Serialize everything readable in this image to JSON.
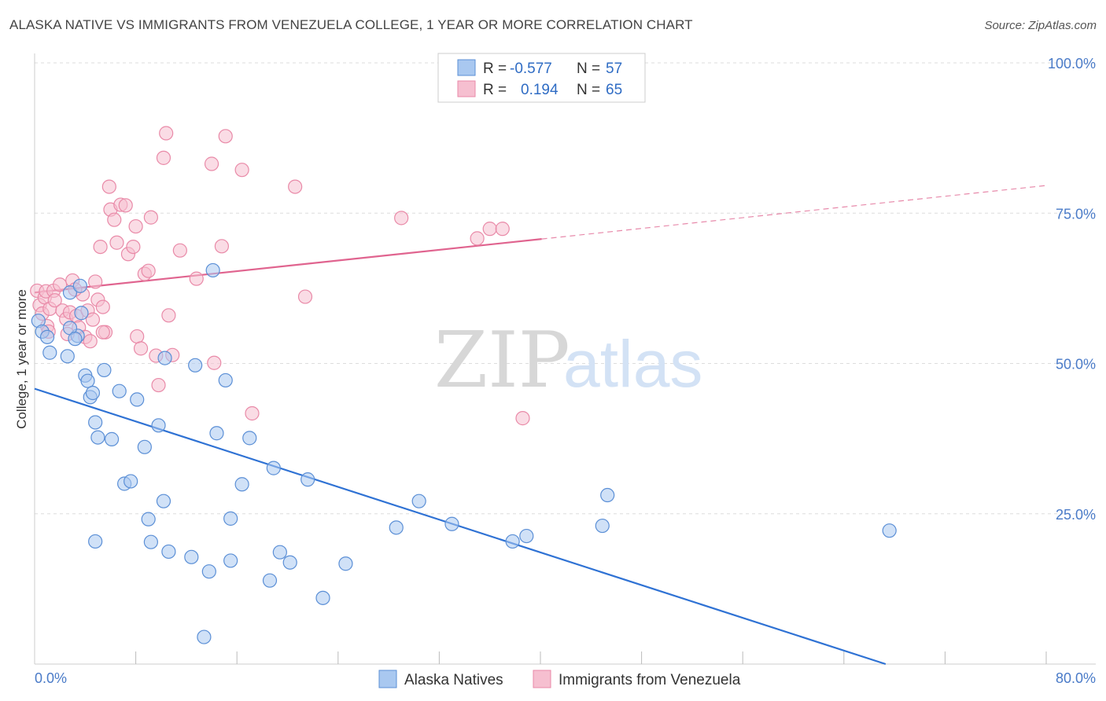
{
  "header": {
    "title": "ALASKA NATIVE VS IMMIGRANTS FROM VENEZUELA COLLEGE, 1 YEAR OR MORE CORRELATION CHART",
    "source": "Source: ZipAtlas.com"
  },
  "watermark": {
    "zip": "ZIP",
    "atlas": "atlas"
  },
  "legend": {
    "rows": [
      {
        "r_label": "R =",
        "r_value": "-0.577",
        "n_label": "N =",
        "n_value": "57"
      },
      {
        "r_label": "R =",
        "r_value": "0.194",
        "n_label": "N =",
        "n_value": "65"
      }
    ]
  },
  "bottom_legend": {
    "blue": "Alaska Natives",
    "pink": "Immigrants from Venezuela"
  },
  "colors": {
    "blue_fill": "#a9c8f0",
    "blue_stroke": "#5b8fd6",
    "blue_line": "#2f72d4",
    "pink_fill": "#f6bfd0",
    "pink_stroke": "#e98aa8",
    "pink_line": "#e0648f",
    "grid": "#dddddd"
  },
  "chart_data": {
    "type": "scatter",
    "title": "ALASKA NATIVE VS IMMIGRANTS FROM VENEZUELA COLLEGE, 1 YEAR OR MORE CORRELATION CHART",
    "xlabel": "",
    "ylabel": "College, 1 year or more",
    "xlim": [
      0,
      80
    ],
    "ylim": [
      0,
      100
    ],
    "x_tick_labels": [
      "0.0%",
      "80.0%"
    ],
    "y_tick_labels": [
      "25.0%",
      "50.0%",
      "75.0%",
      "100.0%"
    ],
    "y_ticks": [
      25,
      50,
      75,
      100
    ],
    "grid": true,
    "legend_position": "top-center",
    "series": [
      {
        "name": "Alaska Natives",
        "color": "#a9c8f0",
        "trend": {
          "x": [
            0,
            67.3
          ],
          "y": [
            45.8,
            0
          ],
          "style": "solid"
        },
        "points": [
          [
            0.3,
            57.1
          ],
          [
            0.6,
            55.3
          ],
          [
            1.0,
            54.4
          ],
          [
            1.2,
            51.8
          ],
          [
            2.8,
            61.8
          ],
          [
            3.4,
            54.6
          ],
          [
            2.8,
            55.9
          ],
          [
            3.2,
            54.1
          ],
          [
            2.6,
            51.2
          ],
          [
            3.6,
            62.9
          ],
          [
            3.7,
            58.4
          ],
          [
            4.0,
            48.0
          ],
          [
            4.2,
            47.1
          ],
          [
            4.4,
            44.4
          ],
          [
            4.6,
            45.1
          ],
          [
            4.8,
            40.2
          ],
          [
            5.0,
            37.7
          ],
          [
            5.5,
            48.9
          ],
          [
            6.1,
            37.4
          ],
          [
            6.7,
            45.4
          ],
          [
            7.1,
            30.0
          ],
          [
            7.6,
            30.4
          ],
          [
            8.1,
            44.0
          ],
          [
            8.7,
            36.1
          ],
          [
            9.0,
            24.1
          ],
          [
            9.2,
            20.3
          ],
          [
            9.8,
            39.7
          ],
          [
            10.2,
            27.1
          ],
          [
            10.6,
            18.7
          ],
          [
            12.4,
            17.8
          ],
          [
            12.7,
            49.7
          ],
          [
            13.8,
            15.4
          ],
          [
            14.4,
            38.4
          ],
          [
            14.1,
            65.5
          ],
          [
            15.1,
            47.2
          ],
          [
            15.5,
            24.2
          ],
          [
            15.5,
            17.2
          ],
          [
            16.4,
            29.9
          ],
          [
            17.0,
            37.6
          ],
          [
            18.6,
            13.9
          ],
          [
            18.9,
            32.6
          ],
          [
            19.4,
            18.6
          ],
          [
            20.2,
            16.9
          ],
          [
            21.6,
            30.7
          ],
          [
            22.8,
            11.0
          ],
          [
            24.6,
            16.7
          ],
          [
            28.6,
            22.7
          ],
          [
            30.4,
            27.1
          ],
          [
            33.0,
            23.3
          ],
          [
            37.8,
            20.4
          ],
          [
            38.9,
            21.3
          ],
          [
            44.9,
            23.0
          ],
          [
            45.3,
            28.1
          ],
          [
            67.6,
            22.2
          ],
          [
            13.4,
            4.5
          ],
          [
            4.8,
            20.4
          ],
          [
            10.3,
            50.9
          ]
        ]
      },
      {
        "name": "Immigrants from Venezuela",
        "color": "#f6bfd0",
        "trend": {
          "x": [
            0,
            40.1
          ],
          "y": [
            61.8,
            70.7
          ],
          "style": "solid",
          "dashed_to": [
            80,
            79.6
          ]
        },
        "points": [
          [
            0.2,
            62.1
          ],
          [
            0.4,
            59.7
          ],
          [
            0.6,
            58.3
          ],
          [
            0.8,
            61.0
          ],
          [
            0.9,
            62.0
          ],
          [
            1.0,
            56.2
          ],
          [
            1.1,
            55.3
          ],
          [
            1.2,
            59.1
          ],
          [
            1.5,
            62.1
          ],
          [
            1.6,
            60.5
          ],
          [
            2.0,
            63.1
          ],
          [
            2.2,
            58.8
          ],
          [
            2.5,
            57.4
          ],
          [
            2.6,
            54.9
          ],
          [
            2.8,
            58.5
          ],
          [
            3.0,
            63.8
          ],
          [
            3.3,
            57.9
          ],
          [
            3.5,
            56.0
          ],
          [
            3.8,
            61.5
          ],
          [
            4.0,
            54.4
          ],
          [
            4.2,
            58.8
          ],
          [
            4.4,
            53.7
          ],
          [
            4.6,
            57.3
          ],
          [
            4.8,
            63.6
          ],
          [
            5.0,
            60.6
          ],
          [
            5.2,
            69.4
          ],
          [
            5.4,
            59.4
          ],
          [
            5.6,
            55.2
          ],
          [
            5.9,
            79.4
          ],
          [
            6.0,
            75.6
          ],
          [
            6.3,
            73.9
          ],
          [
            6.5,
            70.1
          ],
          [
            6.8,
            76.4
          ],
          [
            7.2,
            76.3
          ],
          [
            7.4,
            68.2
          ],
          [
            7.8,
            69.4
          ],
          [
            8.0,
            72.8
          ],
          [
            8.1,
            54.5
          ],
          [
            8.4,
            52.5
          ],
          [
            8.7,
            64.9
          ],
          [
            9.0,
            65.4
          ],
          [
            9.2,
            74.3
          ],
          [
            9.6,
            51.3
          ],
          [
            9.8,
            46.4
          ],
          [
            10.2,
            84.2
          ],
          [
            10.4,
            88.3
          ],
          [
            10.6,
            58.0
          ],
          [
            10.9,
            51.4
          ],
          [
            11.5,
            68.8
          ],
          [
            12.8,
            64.1
          ],
          [
            14.0,
            83.2
          ],
          [
            14.2,
            50.1
          ],
          [
            14.8,
            69.5
          ],
          [
            15.1,
            87.8
          ],
          [
            16.4,
            82.2
          ],
          [
            17.2,
            41.7
          ],
          [
            20.6,
            79.4
          ],
          [
            21.4,
            61.1
          ],
          [
            29.0,
            74.2
          ],
          [
            35.0,
            70.8
          ],
          [
            36.0,
            72.4
          ],
          [
            37.0,
            72.4
          ],
          [
            38.6,
            40.9
          ],
          [
            5.4,
            55.2
          ],
          [
            3.2,
            62.3
          ]
        ]
      }
    ]
  }
}
